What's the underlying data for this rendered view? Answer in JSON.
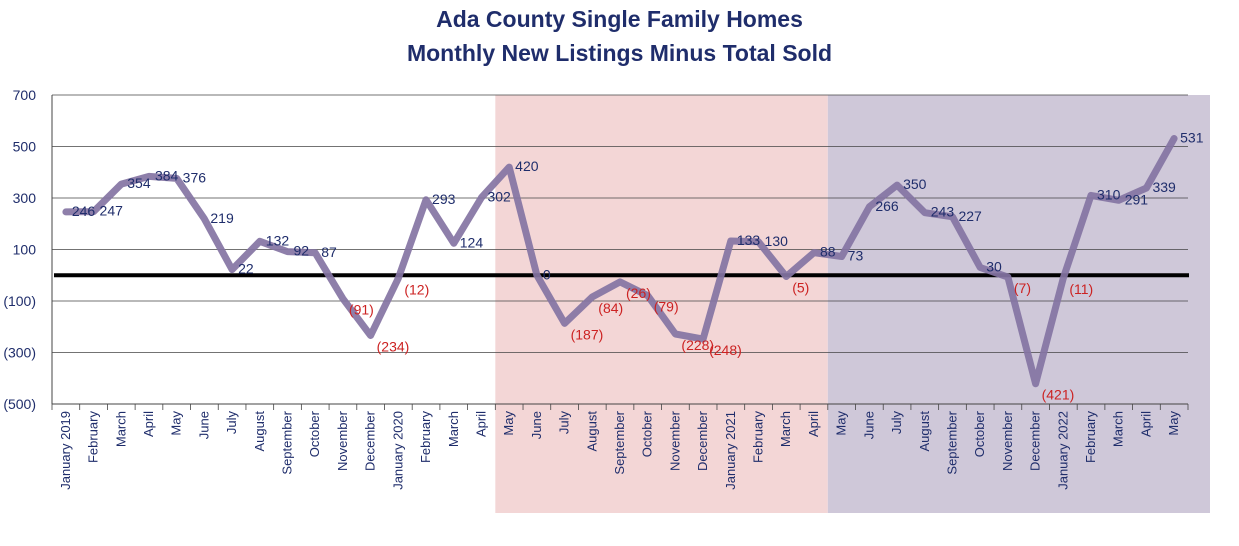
{
  "chart_data": {
    "type": "line",
    "title": "Ada County Single Family Homes",
    "subtitle": "Monthly New Listings Minus Total Sold",
    "xlabel": "",
    "ylabel": "",
    "ylim": [
      -500,
      700
    ],
    "y_ticks": [
      700,
      500,
      300,
      100,
      -100,
      -300,
      -500
    ],
    "y_tick_labels": [
      "700",
      "500",
      "300",
      "100",
      "(100)",
      "(300)",
      "(500)"
    ],
    "grid": true,
    "zero_line": 0,
    "categories": [
      "January 2019",
      "February",
      "March",
      "April",
      "May",
      "June",
      "July",
      "August",
      "September",
      "October",
      "November",
      "December",
      "January 2020",
      "February",
      "March",
      "April",
      "May",
      "June",
      "July",
      "August",
      "September",
      "October",
      "November",
      "December",
      "January 2021",
      "February",
      "March",
      "April",
      "May",
      "June",
      "July",
      "August",
      "September",
      "October",
      "November",
      "December",
      "January 2022",
      "February",
      "March",
      "April",
      "May"
    ],
    "values": [
      246,
      247,
      354,
      384,
      376,
      219,
      22,
      132,
      92,
      87,
      -91,
      -234,
      -12,
      293,
      124,
      302,
      420,
      0,
      -187,
      -84,
      -26,
      -79,
      -228,
      -248,
      133,
      130,
      -5,
      88,
      73,
      266,
      350,
      243,
      227,
      30,
      -7,
      -421,
      -11,
      310,
      291,
      339,
      531
    ],
    "data_labels": [
      "246",
      "247",
      "354",
      "384",
      "376",
      "219",
      "22",
      "132",
      "92",
      "87",
      "(91)",
      "(234)",
      "(12)",
      "293",
      "124",
      "302",
      "420",
      "0",
      "(187)",
      "(84)",
      "(26)",
      "(79)",
      "(228)",
      "(248)",
      "133",
      "130",
      "(5)",
      "88",
      "73",
      "266",
      "350",
      "243",
      "227",
      "30",
      "(7)",
      "(421)",
      "(11)",
      "310",
      "291",
      "339",
      "531"
    ],
    "shaded_periods": [
      {
        "from": "May",
        "to": "April",
        "start_index": 16,
        "end_index": 27,
        "color": "#f3d6d6"
      },
      {
        "from": "May",
        "to": "May",
        "start_index": 28,
        "end_index": 40,
        "color": "#cfc8d9"
      }
    ],
    "colors": {
      "line": "#8474a3",
      "positive_label": "#1f2d6b",
      "negative_label": "#cc2222",
      "zero_line": "#000000"
    }
  }
}
